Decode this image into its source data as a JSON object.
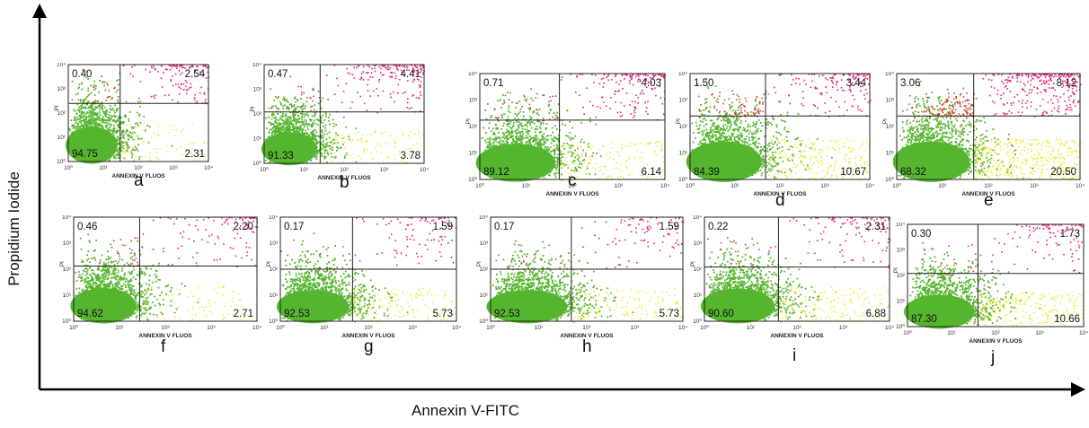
{
  "figure": {
    "ylabel": "Propidium Iodide",
    "xlabel": "Annexin V-FITC"
  },
  "colors": {
    "viable": "#56b52e",
    "early_apoptotic": "#f0ec3c",
    "late_apoptotic": "#e8207a",
    "necrotic": "#d62a22"
  },
  "chart_data": [
    {
      "type": "scatter",
      "panel": "a",
      "xlabel": "ANNEXIN V FLUOS",
      "ylabel": "PI",
      "xscale": "log",
      "xlim": [
        1,
        10000
      ],
      "yscale": "log",
      "ylim": [
        1,
        10000
      ],
      "quadrants": {
        "upper_left": "0.40",
        "upper_right": "2.54",
        "lower_left": "94.75",
        "lower_right": "2.31"
      }
    },
    {
      "type": "scatter",
      "panel": "b",
      "xlabel": "ANNEXIN V FLUOS",
      "ylabel": "PI",
      "xscale": "log",
      "xlim": [
        1,
        10000
      ],
      "yscale": "log",
      "ylim": [
        1,
        10000
      ],
      "quadrants": {
        "upper_left": "0.47",
        "upper_right": "4.41",
        "lower_left": "91.33",
        "lower_right": "3.78"
      }
    },
    {
      "type": "scatter",
      "panel": "c",
      "xlabel": "ANNEXIN V FLUOS",
      "ylabel": "PI",
      "xscale": "log",
      "xlim": [
        1,
        10000
      ],
      "yscale": "log",
      "ylim": [
        1,
        10000
      ],
      "quadrants": {
        "upper_left": "0.71",
        "upper_right": "4.03",
        "lower_left": "89.12",
        "lower_right": "6.14"
      }
    },
    {
      "type": "scatter",
      "panel": "d",
      "xlabel": "ANNEXIN V FLUOS",
      "ylabel": "PI",
      "xscale": "log",
      "xlim": [
        1,
        10000
      ],
      "yscale": "log",
      "ylim": [
        1,
        10000
      ],
      "quadrants": {
        "upper_left": "1.50",
        "upper_right": "3.44",
        "lower_left": "84.39",
        "lower_right": "10.67"
      }
    },
    {
      "type": "scatter",
      "panel": "e",
      "xlabel": "ANNEXIN V FLUOS",
      "ylabel": "PI",
      "xscale": "log",
      "xlim": [
        1,
        10000
      ],
      "yscale": "log",
      "ylim": [
        1,
        10000
      ],
      "quadrants": {
        "upper_left": "3.06",
        "upper_right": "8.12",
        "lower_left": "68.32",
        "lower_right": "20.50"
      }
    },
    {
      "type": "scatter",
      "panel": "f",
      "xlabel": "ANNEXIN V FLUOS",
      "ylabel": "PI",
      "xscale": "log",
      "xlim": [
        1,
        10000
      ],
      "yscale": "log",
      "ylim": [
        1,
        10000
      ],
      "quadrants": {
        "upper_left": "0.46",
        "upper_right": "2.20",
        "lower_left": "94.62",
        "lower_right": "2.71"
      }
    },
    {
      "type": "scatter",
      "panel": "g",
      "xlabel": "ANNEXIN V FLUOS",
      "ylabel": "PI",
      "xscale": "log",
      "xlim": [
        1,
        10000
      ],
      "yscale": "log",
      "ylim": [
        1,
        10000
      ],
      "quadrants": {
        "upper_left": "0.17",
        "upper_right": "1.59",
        "lower_left": "92.53",
        "lower_right": "5.73"
      }
    },
    {
      "type": "scatter",
      "panel": "h",
      "xlabel": "ANNEXIN V FLUOS",
      "ylabel": "PI",
      "xscale": "log",
      "xlim": [
        1,
        10000
      ],
      "yscale": "log",
      "ylim": [
        1,
        10000
      ],
      "quadrants": {
        "upper_left": "0.17",
        "upper_right": "1.59",
        "lower_left": "92.53",
        "lower_right": "5.73"
      }
    },
    {
      "type": "scatter",
      "panel": "i",
      "xlabel": "ANNEXIN V FLUOS",
      "ylabel": "PI",
      "xscale": "log",
      "xlim": [
        1,
        10000
      ],
      "yscale": "log",
      "ylim": [
        1,
        10000
      ],
      "quadrants": {
        "upper_left": "0.22",
        "upper_right": "2.31",
        "lower_left": "90.60",
        "lower_right": "6.88"
      }
    },
    {
      "type": "scatter",
      "panel": "j",
      "xlabel": "ANNEXIN V FLUOS",
      "ylabel": "PI",
      "xscale": "log",
      "xlim": [
        1,
        10000
      ],
      "yscale": "log",
      "ylim": [
        1,
        10000
      ],
      "quadrants": {
        "upper_left": "0.30",
        "upper_right": "1.73",
        "lower_left": "87.30",
        "lower_right": "10.66"
      }
    }
  ]
}
